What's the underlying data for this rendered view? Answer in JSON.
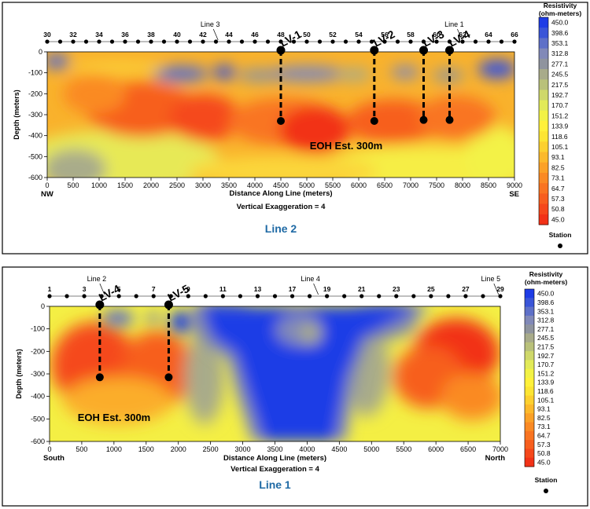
{
  "chart_data": [
    {
      "type": "heatmap",
      "caption": "Line 2",
      "ylabel": "Depth (meters)",
      "xlabel": "Distance Along Line (meters)",
      "subtitle": "Vertical Exaggeration = 4",
      "x_ticks": [
        0,
        500,
        1000,
        1500,
        2000,
        2500,
        3000,
        3500,
        4000,
        4500,
        5000,
        5500,
        6000,
        6500,
        7000,
        7500,
        8000,
        8500,
        9000
      ],
      "y_ticks": [
        0,
        -100,
        -200,
        -300,
        -400,
        -500,
        -600
      ],
      "xlim": [
        0,
        9000
      ],
      "ylim": [
        -600,
        0
      ],
      "left_label": "NW",
      "right_label": "SE",
      "stations": [
        "30",
        "32",
        "34",
        "36",
        "38",
        "40",
        "42",
        "44",
        "46",
        "48",
        "50",
        "52",
        "54",
        "56",
        "58",
        "60",
        "62",
        "64",
        "66"
      ],
      "line_callouts": [
        {
          "label": "Line 3",
          "x": 3200
        },
        {
          "label": "Line 1",
          "x": 7900
        }
      ],
      "drill_holes": [
        {
          "label": "LV-1",
          "x": 4500,
          "depth": -330
        },
        {
          "label": "LV-2",
          "x": 6300,
          "depth": -330
        },
        {
          "label": "LV-3",
          "x": 7250,
          "depth": -325
        },
        {
          "label": "LV-4",
          "x": 7750,
          "depth": -325
        }
      ],
      "annotation": "EOH Est. 300m",
      "legend_title": "Resistivity (ohm-meters)",
      "legend_values": [
        "450.0",
        "398.6",
        "353.1",
        "312.8",
        "277.1",
        "245.5",
        "217.5",
        "192.7",
        "170.7",
        "151.2",
        "133.9",
        "118.6",
        "105.1",
        "93.1",
        "82.5",
        "73.1",
        "64.7",
        "57.3",
        "50.8",
        "45.0"
      ],
      "legend_colors": [
        "#1e3ce6",
        "#3a55d8",
        "#5e70c8",
        "#8189b8",
        "#8f949e",
        "#a8ab8a",
        "#b9c17a",
        "#cfd86a",
        "#e2ea58",
        "#f2f245",
        "#fff13a",
        "#fde533",
        "#fdd02f",
        "#fcb92b",
        "#fba127",
        "#fa8a24",
        "#f97421",
        "#f75e1e",
        "#f5481b",
        "#f23217"
      ],
      "station_label": "Station"
    },
    {
      "type": "heatmap",
      "caption": "Line 1",
      "ylabel": "Depth (meters)",
      "xlabel": "Distance Along Line (meters)",
      "subtitle": "Vertical Exaggeration = 4",
      "x_ticks": [
        0,
        500,
        1000,
        1500,
        2000,
        2500,
        3000,
        3500,
        4000,
        4500,
        5000,
        5500,
        6000,
        6500,
        7000
      ],
      "y_ticks": [
        0,
        -100,
        -200,
        -300,
        -400,
        -500,
        -600
      ],
      "xlim": [
        0,
        7000
      ],
      "ylim": [
        -600,
        0
      ],
      "left_label": "South",
      "right_label": "North",
      "stations": [
        "1",
        "3",
        "5",
        "7",
        "9",
        "11",
        "13",
        "17",
        "19",
        "21",
        "23",
        "25",
        "27",
        "29"
      ],
      "line_callouts": [
        {
          "label": "Line 2",
          "x": 780
        },
        {
          "label": "Line 4",
          "x": 4100
        },
        {
          "label": "Line 5",
          "x": 6900
        }
      ],
      "drill_holes": [
        {
          "label": "LV-4",
          "x": 780,
          "depth": -315
        },
        {
          "label": "LV-5",
          "x": 1850,
          "depth": -315
        }
      ],
      "annotation": "EOH Est. 300m",
      "legend_title": "Resistivity (ohm-meters)",
      "legend_values": [
        "450.0",
        "398.6",
        "353.1",
        "312.8",
        "277.1",
        "245.5",
        "217.5",
        "192.7",
        "170.7",
        "151.2",
        "133.9",
        "118.6",
        "105.1",
        "93.1",
        "82.5",
        "73.1",
        "64.7",
        "57.3",
        "50.8",
        "45.0"
      ],
      "legend_colors": [
        "#1e3ce6",
        "#3a55d8",
        "#5e70c8",
        "#8189b8",
        "#8f949e",
        "#a8ab8a",
        "#b9c17a",
        "#cfd86a",
        "#e2ea58",
        "#f2f245",
        "#fff13a",
        "#fde533",
        "#fdd02f",
        "#fcb92b",
        "#fba127",
        "#fa8a24",
        "#f97421",
        "#f75e1e",
        "#f5481b",
        "#f23217"
      ],
      "station_label": "Station"
    }
  ]
}
